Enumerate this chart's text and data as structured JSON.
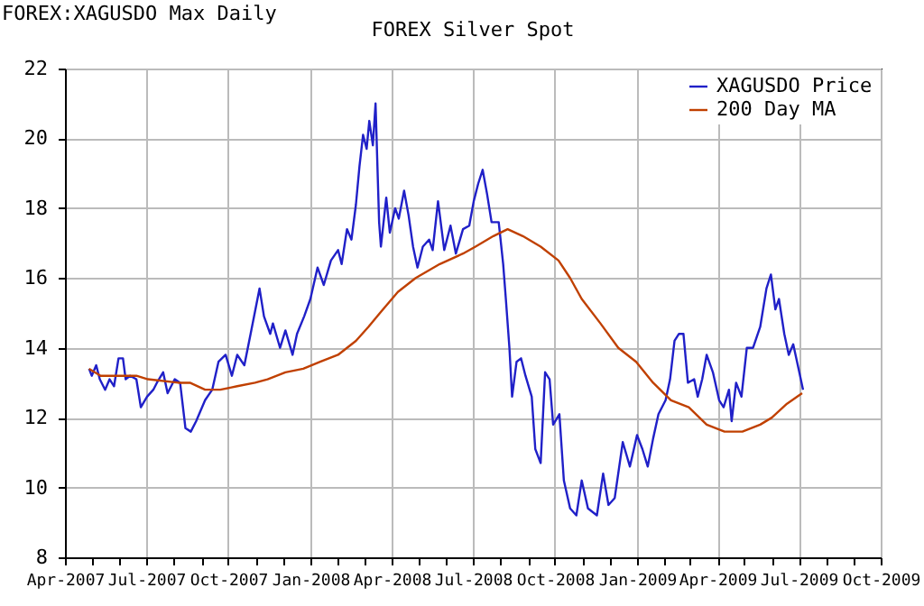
{
  "chart_data": {
    "type": "line",
    "title": "FOREX Silver Spot",
    "annotations": [
      "FOREX:XAGUSDO Max Daily"
    ],
    "xlim": [
      "2007-04-01",
      "2009-10-01"
    ],
    "xticks": [
      {
        "value": "2007-04-01",
        "label": "Apr-2007"
      },
      {
        "value": "2007-05-01",
        "label": null
      },
      {
        "value": "2007-06-01",
        "label": null
      },
      {
        "value": "2007-07-01",
        "label": "Jul-2007"
      },
      {
        "value": "2007-08-01",
        "label": null
      },
      {
        "value": "2007-09-01",
        "label": null
      },
      {
        "value": "2007-10-01",
        "label": "Oct-2007"
      },
      {
        "value": "2007-11-01",
        "label": null
      },
      {
        "value": "2007-12-01",
        "label": null
      },
      {
        "value": "2008-01-01",
        "label": "Jan-2008"
      },
      {
        "value": "2008-02-01",
        "label": null
      },
      {
        "value": "2008-03-01",
        "label": null
      },
      {
        "value": "2008-04-01",
        "label": "Apr-2008"
      },
      {
        "value": "2008-05-01",
        "label": null
      },
      {
        "value": "2008-06-01",
        "label": null
      },
      {
        "value": "2008-07-01",
        "label": "Jul-2008"
      },
      {
        "value": "2008-08-01",
        "label": null
      },
      {
        "value": "2008-09-01",
        "label": null
      },
      {
        "value": "2008-10-01",
        "label": "Oct-2008"
      },
      {
        "value": "2008-11-01",
        "label": null
      },
      {
        "value": "2008-12-01",
        "label": null
      },
      {
        "value": "2009-01-01",
        "label": "Jan-2009"
      },
      {
        "value": "2009-02-01",
        "label": null
      },
      {
        "value": "2009-03-01",
        "label": null
      },
      {
        "value": "2009-04-01",
        "label": "Apr-2009"
      },
      {
        "value": "2009-05-01",
        "label": null
      },
      {
        "value": "2009-06-01",
        "label": null
      },
      {
        "value": "2009-07-01",
        "label": "Jul-2009"
      },
      {
        "value": "2009-08-01",
        "label": null
      },
      {
        "value": "2009-09-01",
        "label": null
      },
      {
        "value": "2009-10-01",
        "label": "Oct-2009"
      }
    ],
    "ylim": [
      8,
      22
    ],
    "yticks": [
      8,
      10,
      12,
      14,
      16,
      18,
      20,
      22
    ],
    "grid": true,
    "legend": "top right",
    "marker": "none",
    "line_style": "solid",
    "series": [
      {
        "name": "XAGUSDO Price",
        "color": "#2020c8",
        "x": [
          "2007-04-28",
          "2007-05-01",
          "2007-05-06",
          "2007-05-10",
          "2007-05-16",
          "2007-05-21",
          "2007-05-26",
          "2007-05-31",
          "2007-06-05",
          "2007-06-08",
          "2007-06-13",
          "2007-06-20",
          "2007-06-25",
          "2007-07-02",
          "2007-07-09",
          "2007-07-13",
          "2007-07-20",
          "2007-07-25",
          "2007-08-02",
          "2007-08-08",
          "2007-08-14",
          "2007-08-20",
          "2007-08-26",
          "2007-09-05",
          "2007-09-13",
          "2007-09-20",
          "2007-09-28",
          "2007-10-05",
          "2007-10-11",
          "2007-10-19",
          "2007-10-26",
          "2007-11-05",
          "2007-11-10",
          "2007-11-17",
          "2007-11-20",
          "2007-11-28",
          "2007-12-04",
          "2007-12-12",
          "2007-12-17",
          "2007-12-25",
          "2008-01-01",
          "2008-01-09",
          "2008-01-16",
          "2008-01-24",
          "2008-02-01",
          "2008-02-05",
          "2008-02-11",
          "2008-02-16",
          "2008-02-21",
          "2008-02-25",
          "2008-02-29",
          "2008-03-04",
          "2008-03-07",
          "2008-03-11",
          "2008-03-14",
          "2008-03-18",
          "2008-03-20",
          "2008-03-26",
          "2008-03-30",
          "2008-04-05",
          "2008-04-09",
          "2008-04-15",
          "2008-04-20",
          "2008-04-25",
          "2008-04-30",
          "2008-05-06",
          "2008-05-13",
          "2008-05-17",
          "2008-05-23",
          "2008-05-30",
          "2008-06-06",
          "2008-06-12",
          "2008-06-20",
          "2008-06-27",
          "2008-07-02",
          "2008-07-07",
          "2008-07-12",
          "2008-07-17",
          "2008-07-22",
          "2008-07-30",
          "2008-08-04",
          "2008-08-07",
          "2008-08-11",
          "2008-08-14",
          "2008-08-19",
          "2008-08-24",
          "2008-08-29",
          "2008-09-05",
          "2008-09-09",
          "2008-09-15",
          "2008-09-20",
          "2008-09-25",
          "2008-09-29",
          "2008-10-06",
          "2008-10-11",
          "2008-10-18",
          "2008-10-25",
          "2008-10-31",
          "2008-11-07",
          "2008-11-17",
          "2008-11-24",
          "2008-11-30",
          "2008-12-07",
          "2008-12-16",
          "2008-12-24",
          "2009-01-01",
          "2009-01-07",
          "2009-01-13",
          "2009-01-19",
          "2009-01-25",
          "2009-02-02",
          "2009-02-07",
          "2009-02-12",
          "2009-02-17",
          "2009-02-22",
          "2009-02-27",
          "2009-03-06",
          "2009-03-10",
          "2009-03-15",
          "2009-03-20",
          "2009-03-27",
          "2009-04-03",
          "2009-04-08",
          "2009-04-14",
          "2009-04-17",
          "2009-04-22",
          "2009-04-28",
          "2009-05-04",
          "2009-05-11",
          "2009-05-19",
          "2009-05-26",
          "2009-05-31",
          "2009-06-05",
          "2009-06-09",
          "2009-06-15",
          "2009-06-20",
          "2009-06-25",
          "2009-07-01",
          "2009-07-06"
        ],
        "values": [
          13.4,
          13.2,
          13.5,
          13.1,
          12.8,
          13.1,
          12.9,
          13.7,
          13.7,
          13.1,
          13.2,
          13.1,
          12.3,
          12.6,
          12.8,
          13.0,
          13.3,
          12.7,
          13.1,
          13.0,
          11.7,
          11.6,
          11.9,
          12.5,
          12.8,
          13.6,
          13.8,
          13.2,
          13.8,
          13.5,
          14.4,
          15.7,
          14.9,
          14.4,
          14.7,
          14.0,
          14.5,
          13.8,
          14.4,
          14.9,
          15.4,
          16.3,
          15.8,
          16.5,
          16.8,
          16.4,
          17.4,
          17.1,
          18.1,
          19.2,
          20.1,
          19.7,
          20.5,
          19.8,
          21.0,
          17.6,
          16.9,
          18.3,
          17.3,
          18.0,
          17.7,
          18.5,
          17.8,
          16.9,
          16.3,
          16.9,
          17.1,
          16.8,
          18.2,
          16.8,
          17.5,
          16.7,
          17.4,
          17.5,
          18.2,
          18.7,
          19.1,
          18.4,
          17.6,
          17.6,
          16.4,
          15.4,
          14.0,
          12.6,
          13.6,
          13.7,
          13.2,
          12.6,
          11.1,
          10.7,
          13.3,
          13.1,
          11.8,
          12.1,
          10.2,
          9.4,
          9.2,
          10.2,
          9.4,
          9.2,
          10.4,
          9.5,
          9.7,
          11.3,
          10.6,
          11.5,
          11.1,
          10.6,
          11.4,
          12.1,
          12.5,
          13.1,
          14.2,
          14.4,
          14.4,
          13.0,
          13.1,
          12.6,
          13.1,
          13.8,
          13.3,
          12.5,
          12.3,
          12.8,
          11.9,
          13.0,
          12.6,
          14.0,
          14.0,
          14.6,
          15.7,
          16.1,
          15.1,
          15.4,
          14.4,
          13.8,
          14.1,
          13.4,
          12.8
        ]
      },
      {
        "name": "200 Day MA",
        "color": "#c04000",
        "x": [
          "2007-04-28",
          "2007-05-11",
          "2007-05-31",
          "2007-06-20",
          "2007-07-03",
          "2007-08-06",
          "2007-08-19",
          "2007-09-05",
          "2007-09-22",
          "2007-10-11",
          "2007-10-31",
          "2007-11-14",
          "2007-12-04",
          "2007-12-24",
          "2008-01-12",
          "2008-02-01",
          "2008-02-21",
          "2008-03-06",
          "2008-03-19",
          "2008-04-08",
          "2008-04-28",
          "2008-05-25",
          "2008-06-20",
          "2008-07-04",
          "2008-07-24",
          "2008-08-09",
          "2008-08-26",
          "2008-09-15",
          "2008-10-05",
          "2008-10-18",
          "2008-10-31",
          "2008-11-21",
          "2008-12-11",
          "2008-12-31",
          "2009-01-19",
          "2009-02-08",
          "2009-02-28",
          "2009-03-20",
          "2009-04-09",
          "2009-04-29",
          "2009-05-19",
          "2009-06-01",
          "2009-06-18",
          "2009-07-05"
        ],
        "values": [
          13.4,
          13.2,
          13.2,
          13.2,
          13.1,
          13.0,
          13.0,
          12.8,
          12.8,
          12.9,
          13.0,
          13.1,
          13.3,
          13.4,
          13.6,
          13.8,
          14.2,
          14.6,
          15.0,
          15.6,
          16.0,
          16.4,
          16.7,
          16.9,
          17.2,
          17.4,
          17.2,
          16.9,
          16.5,
          16.0,
          15.4,
          14.7,
          14.0,
          13.6,
          13.0,
          12.5,
          12.3,
          11.8,
          11.6,
          11.6,
          11.8,
          12.0,
          12.4,
          12.7
        ]
      }
    ]
  }
}
